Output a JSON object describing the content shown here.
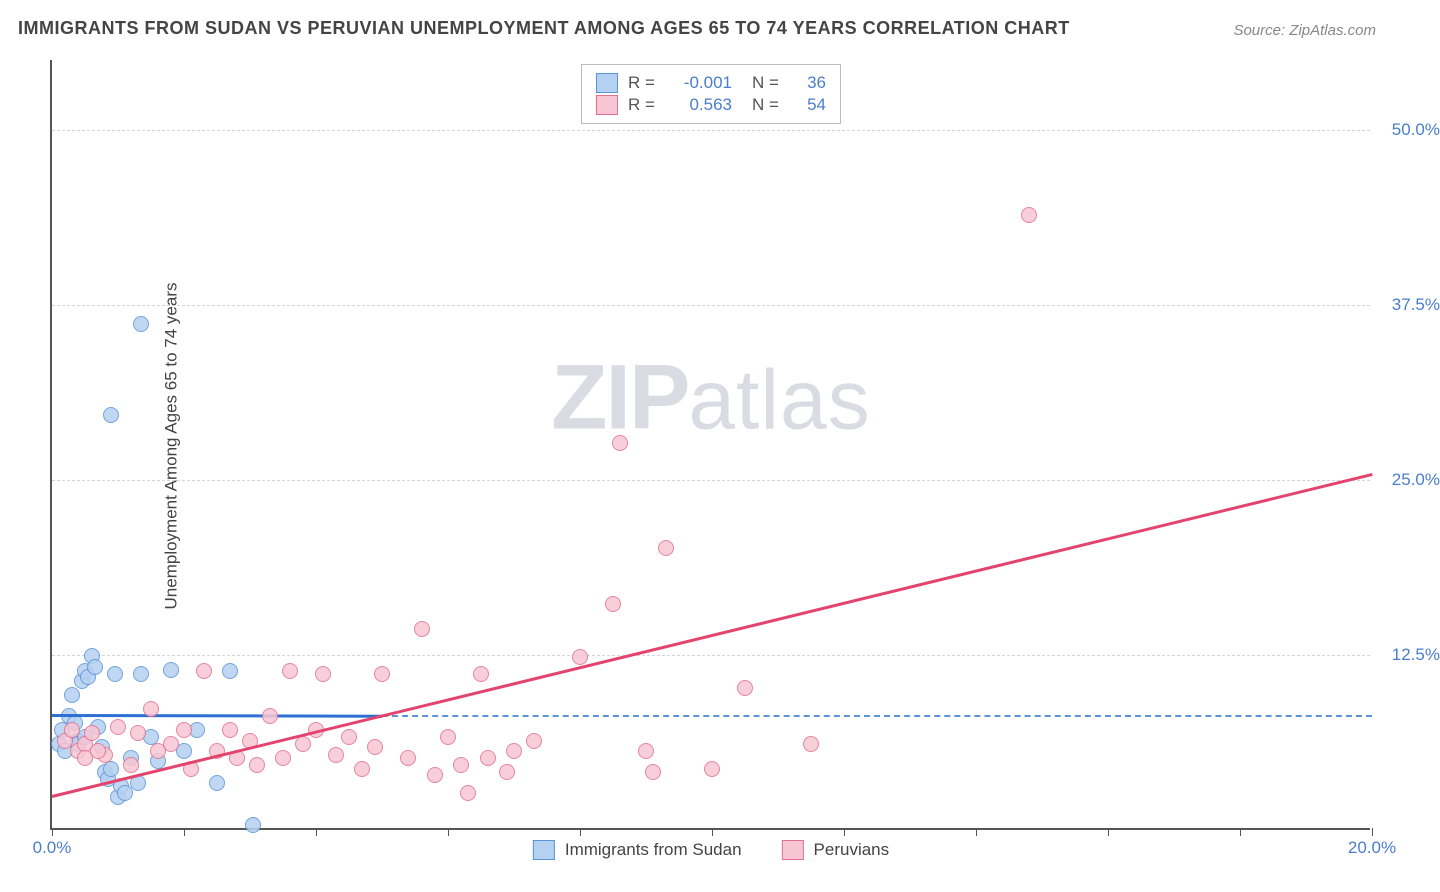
{
  "title": "IMMIGRANTS FROM SUDAN VS PERUVIAN UNEMPLOYMENT AMONG AGES 65 TO 74 YEARS CORRELATION CHART",
  "source": "Source: ZipAtlas.com",
  "ylabel": "Unemployment Among Ages 65 to 74 years",
  "watermark_a": "ZIP",
  "watermark_b": "atlas",
  "chart": {
    "type": "scatter",
    "xlim": [
      0,
      20
    ],
    "ylim": [
      0,
      55
    ],
    "x_ticks": [
      {
        "v": 0,
        "label": "0.0%"
      },
      {
        "v": 2
      },
      {
        "v": 4
      },
      {
        "v": 6
      },
      {
        "v": 8
      },
      {
        "v": 10
      },
      {
        "v": 12
      },
      {
        "v": 14
      },
      {
        "v": 16
      },
      {
        "v": 18
      },
      {
        "v": 20,
        "label": "20.0%"
      }
    ],
    "y_ticks": [
      {
        "v": 12.5,
        "label": "12.5%"
      },
      {
        "v": 25,
        "label": "25.0%"
      },
      {
        "v": 37.5,
        "label": "37.5%"
      },
      {
        "v": 50,
        "label": "50.0%"
      }
    ],
    "grid_color": "#d0d5db",
    "axis_color": "#555555",
    "background_color": "#ffffff",
    "series": [
      {
        "name": "Immigrants from Sudan",
        "fill": "#b5d1f2",
        "stroke": "#5a93d6",
        "R": "-0.001",
        "N": "36",
        "trend": {
          "x0": 0,
          "y0": 8.3,
          "x1": 5.0,
          "y1": 8.25,
          "color": "#2d6fd2",
          "dash_extend_to": 20,
          "dash_color": "#5a93d6"
        },
        "points": [
          [
            0.1,
            6
          ],
          [
            0.15,
            7
          ],
          [
            0.2,
            5.5
          ],
          [
            0.25,
            8
          ],
          [
            0.3,
            9.5
          ],
          [
            0.35,
            7.5
          ],
          [
            0.4,
            6.2
          ],
          [
            0.45,
            10.5
          ],
          [
            0.5,
            11.2
          ],
          [
            0.55,
            10.8
          ],
          [
            0.6,
            12.3
          ],
          [
            0.65,
            11.5
          ],
          [
            0.7,
            7.2
          ],
          [
            0.75,
            5.8
          ],
          [
            0.8,
            4.0
          ],
          [
            0.85,
            3.5
          ],
          [
            0.9,
            4.2
          ],
          [
            0.95,
            11.0
          ],
          [
            1.0,
            2.2
          ],
          [
            1.05,
            3.0
          ],
          [
            1.1,
            2.5
          ],
          [
            1.2,
            5.0
          ],
          [
            1.3,
            3.2
          ],
          [
            1.35,
            11.0
          ],
          [
            1.5,
            6.5
          ],
          [
            1.6,
            4.8
          ],
          [
            1.8,
            11.3
          ],
          [
            2.0,
            5.5
          ],
          [
            2.2,
            7.0
          ],
          [
            2.5,
            3.2
          ],
          [
            2.7,
            11.2
          ],
          [
            3.05,
            0.2
          ],
          [
            0.9,
            29.5
          ],
          [
            1.35,
            36.0
          ],
          [
            0.4,
            6.0
          ],
          [
            0.5,
            6.5
          ]
        ]
      },
      {
        "name": "Peruvians",
        "fill": "#f7c6d4",
        "stroke": "#e3708f",
        "R": "0.563",
        "N": "54",
        "trend": {
          "x0": 0,
          "y0": 2.5,
          "x1": 20,
          "y1": 25.5,
          "color": "#e2446d"
        },
        "points": [
          [
            0.2,
            6.2
          ],
          [
            0.3,
            7.0
          ],
          [
            0.4,
            5.5
          ],
          [
            0.5,
            6.0
          ],
          [
            0.6,
            6.8
          ],
          [
            0.8,
            5.2
          ],
          [
            1.0,
            7.2
          ],
          [
            1.2,
            4.5
          ],
          [
            1.3,
            6.8
          ],
          [
            1.5,
            8.5
          ],
          [
            1.6,
            5.5
          ],
          [
            1.8,
            6.0
          ],
          [
            2.0,
            7.0
          ],
          [
            2.1,
            4.2
          ],
          [
            2.3,
            11.2
          ],
          [
            2.5,
            5.5
          ],
          [
            2.7,
            7.0
          ],
          [
            2.8,
            5.0
          ],
          [
            3.0,
            6.2
          ],
          [
            3.1,
            4.5
          ],
          [
            3.3,
            8.0
          ],
          [
            3.5,
            5.0
          ],
          [
            3.6,
            11.2
          ],
          [
            3.8,
            6.0
          ],
          [
            4.0,
            7.0
          ],
          [
            4.1,
            11.0
          ],
          [
            4.3,
            5.2
          ],
          [
            4.5,
            6.5
          ],
          [
            4.7,
            4.2
          ],
          [
            4.9,
            5.8
          ],
          [
            5.0,
            11.0
          ],
          [
            5.4,
            5.0
          ],
          [
            5.6,
            14.2
          ],
          [
            5.8,
            3.8
          ],
          [
            6.0,
            6.5
          ],
          [
            6.2,
            4.5
          ],
          [
            6.3,
            2.5
          ],
          [
            6.6,
            5.0
          ],
          [
            6.9,
            4.0
          ],
          [
            6.5,
            11.0
          ],
          [
            7.0,
            5.5
          ],
          [
            7.3,
            6.2
          ],
          [
            8.0,
            12.2
          ],
          [
            8.5,
            16.0
          ],
          [
            8.6,
            27.5
          ],
          [
            9.0,
            5.5
          ],
          [
            9.1,
            4.0
          ],
          [
            9.3,
            20.0
          ],
          [
            10.0,
            4.2
          ],
          [
            10.5,
            10.0
          ],
          [
            11.5,
            6.0
          ],
          [
            14.8,
            43.8
          ],
          [
            0.5,
            5.0
          ],
          [
            0.7,
            5.5
          ]
        ]
      }
    ],
    "marker_radius": 8
  },
  "legend_top_labels": {
    "R": "R =",
    "N": "N ="
  },
  "legend_bottom": [
    "Immigrants from Sudan",
    "Peruvians"
  ]
}
